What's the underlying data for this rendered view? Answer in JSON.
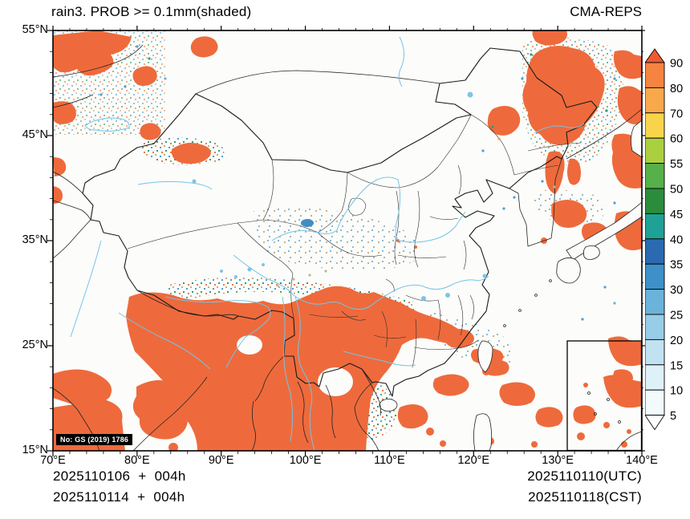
{
  "title": "rain3. PROB >= 0.1mm(shaded)",
  "model": "CMA-REPS",
  "watermark": "No: GS (2019) 1786",
  "axes": {
    "lat_labels": [
      "55°N",
      "45°N",
      "35°N",
      "25°N",
      "15°N"
    ],
    "lon_labels": [
      "70°E",
      "80°E",
      "90°E",
      "100°E",
      "110°E",
      "120°E",
      "130°E",
      "140°E"
    ]
  },
  "colorbar": {
    "labels_top_to_bottom": [
      "90",
      "80",
      "70",
      "60",
      "55",
      "50",
      "45",
      "40",
      "35",
      "30",
      "25",
      "20",
      "15",
      "10",
      "5"
    ],
    "colors_top_to_bottom": [
      "#ee5a32",
      "#f58441",
      "#f9a94b",
      "#f8d44b",
      "#abd03f",
      "#56b14a",
      "#2b8c3e",
      "#1fa295",
      "#2b6ab1",
      "#3e90c8",
      "#6ab3da",
      "#98cde8",
      "#c1e2f1",
      "#def0f8",
      "#f2fafc",
      "#ffffff"
    ]
  },
  "footer": {
    "left_line1": "2025110106  +  004h",
    "left_line2": "2025110114  +  004h",
    "right_line1": "2025110110(UTC)",
    "right_line2": "2025110118(CST)"
  },
  "map": {
    "colors": {
      "shade": "#ee6a3c",
      "river": "#74c4e6",
      "border": "#1a1a1a",
      "background": "#fcfcfa"
    }
  }
}
